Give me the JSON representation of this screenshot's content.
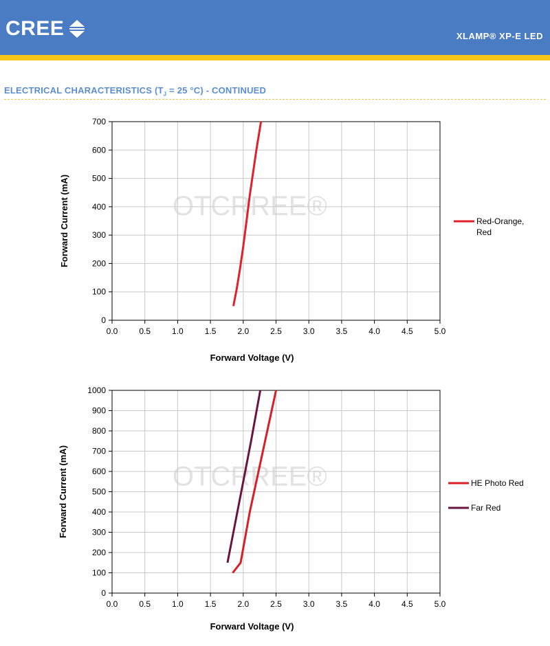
{
  "header": {
    "logo_text": "CREE",
    "product": "XLAMP® XP-E LED",
    "colors": {
      "bar": "#4a7cc4",
      "stripe": "#f5c518"
    }
  },
  "section": {
    "title_prefix": "ELECTRICAL CHARACTERISTICS (T",
    "title_sub": "J",
    "title_suffix": " = 25 °C) - CONTINUED"
  },
  "watermark": "OTCRREE®",
  "chart_data": [
    {
      "type": "line",
      "xlabel": "Forward Voltage (V)",
      "ylabel": "Forward Current (mA)",
      "xlim": [
        0,
        5
      ],
      "ylim": [
        0,
        700
      ],
      "xticks": [
        "0.0",
        "0.5",
        "1.0",
        "1.5",
        "2.0",
        "2.5",
        "3.0",
        "3.5",
        "4.0",
        "4.5",
        "5.0"
      ],
      "yticks": [
        "0",
        "100",
        "200",
        "300",
        "400",
        "500",
        "600",
        "700"
      ],
      "grid": true,
      "legend_position": "right",
      "series": [
        {
          "name": "Red-Orange, Red",
          "name_lines": [
            "Red-Orange,",
            "Red"
          ],
          "color": "#e0202a",
          "x": [
            1.85,
            1.9,
            1.95,
            2.0,
            2.05,
            2.1,
            2.15,
            2.2,
            2.27
          ],
          "y": [
            50,
            110,
            180,
            260,
            350,
            440,
            520,
            600,
            700
          ]
        }
      ]
    },
    {
      "type": "line",
      "xlabel": "Forward Voltage (V)",
      "ylabel": "Forward Current (mA)",
      "xlim": [
        0,
        5
      ],
      "ylim": [
        0,
        1000
      ],
      "xticks": [
        "0.0",
        "0.5",
        "1.0",
        "1.5",
        "2.0",
        "2.5",
        "3.0",
        "3.5",
        "4.0",
        "4.5",
        "5.0"
      ],
      "yticks": [
        "0",
        "100",
        "200",
        "300",
        "400",
        "500",
        "600",
        "700",
        "800",
        "900",
        "1000"
      ],
      "grid": true,
      "legend_position": "right",
      "series": [
        {
          "name": "HE Photo Red",
          "name_lines": [
            "HE Photo Red"
          ],
          "color": "#d81f26",
          "x": [
            1.84,
            1.96,
            2.1,
            2.3,
            2.5
          ],
          "y": [
            100,
            150,
            400,
            700,
            1000
          ]
        },
        {
          "name": "Far Red",
          "name_lines": [
            "Far Red"
          ],
          "color": "#6a1440",
          "x": [
            1.76,
            1.85,
            2.0,
            2.12,
            2.26
          ],
          "y": [
            150,
            300,
            550,
            750,
            1000
          ]
        }
      ]
    }
  ]
}
